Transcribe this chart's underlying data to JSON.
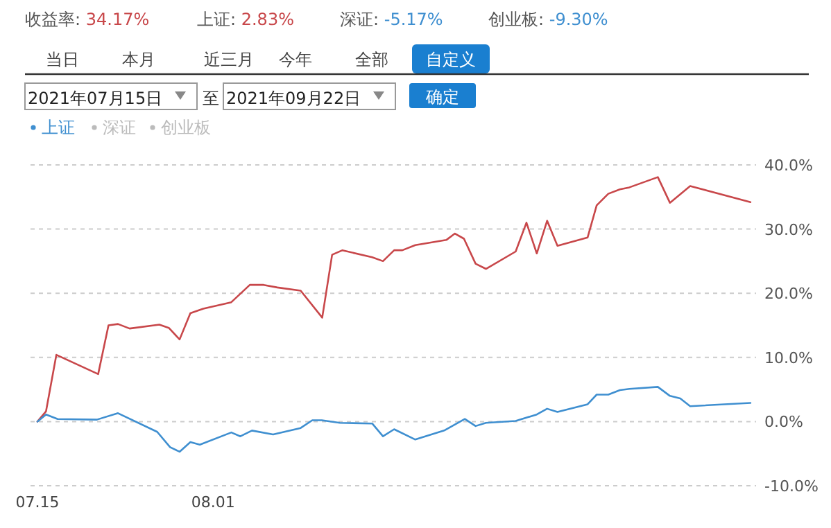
{
  "chart_data": {
    "type": "line",
    "annotations": [
      "收益率: 34.17%",
      "上证: 2.83%",
      "深证: -5.17%",
      "创业板: -9.30%",
      "当日",
      "本月",
      "近三月",
      "今年",
      "全部",
      "自定义",
      "2021年07月15日",
      "至",
      "2021年09月22日",
      "确定",
      "深证",
      "创业板"
    ],
    "series": [
      {
        "color": "#c8474a",
        "x": [
          "2021-07-15T00:00",
          "2021-07-15T20:00",
          "2021-07-16T20:00",
          "2021-07-20T21:00",
          "2021-07-21T21:00",
          "2021-07-22T19:00",
          "2021-07-23T22:00",
          "2021-07-26T19:00",
          "2021-07-27T17:00",
          "2021-07-28T18:00",
          "2021-07-29T19:00",
          "2021-07-31T01:00",
          "2021-08-02T18:00",
          "2021-08-04T13:00",
          "2021-08-05T21:00",
          "2021-08-07T05:00",
          "2021-08-09T11:00",
          "2021-08-11T13:00",
          "2021-08-12T12:00",
          "2021-08-13T12:00",
          "2021-08-16T09:00",
          "2021-08-17T10:00",
          "2021-08-18T12:00",
          "2021-08-19T07:00",
          "2021-08-20T13:00",
          "2021-08-23T13:00",
          "2021-08-24T09:00",
          "2021-08-25T06:00",
          "2021-08-26T09:00",
          "2021-08-27T09:00",
          "2021-08-30T06:00",
          "2021-08-31T07:00",
          "2021-09-01T07:00",
          "2021-09-02T07:00",
          "2021-09-03T07:00",
          "2021-09-06T05:00",
          "2021-09-07T02:00",
          "2021-09-08T05:00",
          "2021-09-09T08:00",
          "2021-09-10T06:00",
          "2021-09-13T00:00",
          "2021-09-14T04:00",
          "2021-09-16T03:00",
          "2021-09-21T23:00"
        ],
        "values": [
          0,
          1.6,
          10.4,
          7.4,
          15.0,
          15.2,
          14.5,
          15.1,
          14.6,
          12.8,
          16.9,
          17.6,
          18.6,
          21.3,
          21.3,
          20.9,
          20.4,
          16.2,
          26.0,
          26.7,
          25.6,
          25.0,
          26.7,
          26.7,
          27.5,
          28.3,
          29.3,
          28.5,
          24.6,
          23.8,
          26.5,
          31.0,
          26.2,
          31.3,
          27.4,
          28.7,
          33.7,
          35.5,
          36.2,
          36.5,
          38.1,
          34.1,
          36.7,
          34.2
        ]
      },
      {
        "name": "上证",
        "color": "#3f8fd0",
        "x": [
          "2021-07-15T00:00",
          "2021-07-15T20:00",
          "2021-07-16T23:00",
          "2021-07-20T18:00",
          "2021-07-22T19:00",
          "2021-07-26T14:00",
          "2021-07-27T20:00",
          "2021-07-28T18:00",
          "2021-07-29T19:00",
          "2021-07-30T17:00",
          "2021-08-02T18:00",
          "2021-08-03T15:00",
          "2021-08-04T18:00",
          "2021-08-06T19:00",
          "2021-08-09T11:00",
          "2021-08-10T14:00",
          "2021-08-11T12:00",
          "2021-08-13T06:00",
          "2021-08-16T09:00",
          "2021-08-17T10:00",
          "2021-08-18T12:00",
          "2021-08-20T13:00",
          "2021-08-23T08:00",
          "2021-08-25T08:00",
          "2021-08-26T09:00",
          "2021-08-27T09:00",
          "2021-08-30T06:00",
          "2021-09-01T07:00",
          "2021-09-02T07:00",
          "2021-09-03T07:00",
          "2021-09-06T05:00",
          "2021-09-07T02:00",
          "2021-09-08T05:00",
          "2021-09-09T08:00",
          "2021-09-10T06:00",
          "2021-09-13T00:00",
          "2021-09-14T04:00",
          "2021-09-15T04:00",
          "2021-09-16T03:00",
          "2021-09-21T23:00"
        ],
        "values": [
          0,
          1.1,
          0.4,
          0.3,
          1.3,
          -1.6,
          -4.0,
          -4.7,
          -3.2,
          -3.6,
          -1.7,
          -2.3,
          -1.4,
          -2.0,
          -1.0,
          0.2,
          0.2,
          -0.2,
          -0.3,
          -2.3,
          -1.2,
          -2.8,
          -1.4,
          0.4,
          -0.7,
          -0.2,
          0.1,
          1.1,
          2.0,
          1.5,
          2.7,
          4.2,
          4.2,
          4.9,
          5.1,
          5.4,
          4.0,
          3.6,
          2.4,
          2.9
        ]
      }
    ],
    "xlim": [
      "2021-07-14T08:00",
      "2021-09-22T12:00"
    ],
    "xticks": [
      {
        "value": "2021-07-15",
        "label": "07.15"
      },
      {
        "value": "2021-08-01",
        "label": "08.01"
      }
    ],
    "ylim": [
      -10,
      40
    ],
    "yticks": [
      {
        "value": -10,
        "label": "-10.0%"
      },
      {
        "value": 0,
        "label": "0.0%"
      },
      {
        "value": 10,
        "label": "10.0%"
      },
      {
        "value": 20,
        "label": "20.0%"
      },
      {
        "value": 30,
        "label": "30.0%"
      },
      {
        "value": 40,
        "label": "40.0%"
      }
    ],
    "grid": "y",
    "legend": "top left"
  }
}
